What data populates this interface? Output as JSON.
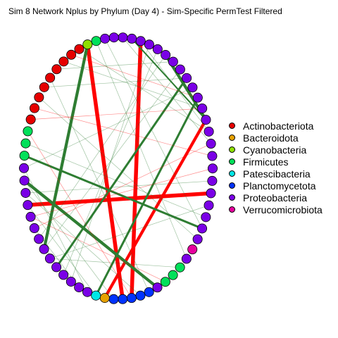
{
  "title": "Sim 8 Network Nplus by Phylum (Day 4) - Sim-Specific PermTest Filtered",
  "colors": {
    "Actinobacteriota": "#e60000",
    "Bacteroidota": "#e6a100",
    "Cyanobacteria": "#8ee000",
    "Firmicutes": "#00e05a",
    "Patescibacteria": "#00e6e6",
    "Planctomycetota": "#0033ff",
    "Proteobacteria": "#7a00e6",
    "Verrucomicrobiota": "#e6009e",
    "positive_edge": "#2e7d32",
    "negative_edge": "#ff0000"
  },
  "legend": [
    {
      "label": "Actinobacteriota",
      "color": "#e60000"
    },
    {
      "label": "Bacteroidota",
      "color": "#e6a100"
    },
    {
      "label": "Cyanobacteria",
      "color": "#8ee000"
    },
    {
      "label": "Firmicutes",
      "color": "#00e05a"
    },
    {
      "label": "Patescibacteria",
      "color": "#00e6e6"
    },
    {
      "label": "Planctomycetota",
      "color": "#0033ff"
    },
    {
      "label": "Proteobacteria",
      "color": "#7a00e6"
    },
    {
      "label": "Verrucomicrobiota",
      "color": "#e6009e"
    }
  ],
  "node_sequence": [
    "Proteobacteria",
    "Proteobacteria",
    "Proteobacteria",
    "Proteobacteria",
    "Proteobacteria",
    "Proteobacteria",
    "Proteobacteria",
    "Proteobacteria",
    "Proteobacteria",
    "Proteobacteria",
    "Proteobacteria",
    "Proteobacteria",
    "Proteobacteria",
    "Proteobacteria",
    "Proteobacteria",
    "Proteobacteria",
    "Proteobacteria",
    "Proteobacteria",
    "Proteobacteria",
    "Proteobacteria",
    "Proteobacteria",
    "Proteobacteria",
    "Proteobacteria",
    "Verrucomicrobiota",
    "Proteobacteria",
    "Firmicutes",
    "Firmicutes",
    "Firmicutes",
    "Proteobacteria",
    "Planctomycetota",
    "Planctomycetota",
    "Planctomycetota",
    "Planctomycetota",
    "Planctomycetota",
    "Bacteroidota",
    "Patescibacteria",
    "Proteobacteria",
    "Proteobacteria",
    "Proteobacteria",
    "Proteobacteria",
    "Proteobacteria",
    "Proteobacteria",
    "Proteobacteria",
    "Proteobacteria",
    "Proteobacteria",
    "Proteobacteria",
    "Proteobacteria",
    "Proteobacteria",
    "Proteobacteria",
    "Proteobacteria",
    "Firmicutes",
    "Firmicutes",
    "Firmicutes",
    "Actinobacteriota",
    "Actinobacteriota",
    "Actinobacteriota",
    "Actinobacteriota",
    "Actinobacteriota",
    "Actinobacteriota",
    "Actinobacteriota",
    "Actinobacteriota",
    "Actinobacteriota",
    "Cyanobacteria",
    "Firmicutes",
    "Proteobacteria",
    "Proteobacteria"
  ],
  "edges": [
    {
      "from": 62,
      "to": 32,
      "sign": "negative",
      "weight": 5
    },
    {
      "from": 46,
      "to": 18,
      "sign": "negative",
      "weight": 5
    },
    {
      "from": 2,
      "to": 31,
      "sign": "negative",
      "weight": 5
    },
    {
      "from": 12,
      "to": 34,
      "sign": "negative",
      "weight": 4
    },
    {
      "from": 5,
      "to": 12,
      "sign": "positive",
      "weight": 4
    },
    {
      "from": 48,
      "to": 28,
      "sign": "positive",
      "weight": 4
    },
    {
      "from": 62,
      "to": 42,
      "sign": "positive",
      "weight": 4
    },
    {
      "from": 8,
      "to": 40,
      "sign": "positive",
      "weight": 3
    },
    {
      "from": 10,
      "to": 35,
      "sign": "positive",
      "weight": 3
    },
    {
      "from": 50,
      "to": 21,
      "sign": "positive",
      "weight": 3
    },
    {
      "from": 1,
      "to": 12,
      "sign": "positive",
      "weight": 2
    },
    {
      "from": 52,
      "to": 31,
      "sign": "negative",
      "weight": 1
    },
    {
      "from": 45,
      "to": 27,
      "sign": "negative",
      "weight": 1
    },
    {
      "from": 54,
      "to": 15,
      "sign": "negative",
      "weight": 1
    },
    {
      "from": 51,
      "to": 20,
      "sign": "positive",
      "weight": 1
    },
    {
      "from": 59,
      "to": 11,
      "sign": "positive",
      "weight": 1
    },
    {
      "from": 49,
      "to": 9,
      "sign": "positive",
      "weight": 1
    },
    {
      "from": 47,
      "to": 17,
      "sign": "positive",
      "weight": 1
    },
    {
      "from": 60,
      "to": 10,
      "sign": "negative",
      "weight": 1
    },
    {
      "from": 42,
      "to": 7,
      "sign": "positive",
      "weight": 1
    },
    {
      "from": 57,
      "to": 29,
      "sign": "positive",
      "weight": 1
    },
    {
      "from": 44,
      "to": 14,
      "sign": "negative",
      "weight": 1
    },
    {
      "from": 53,
      "to": 11,
      "sign": "negative",
      "weight": 1
    },
    {
      "from": 63,
      "to": 24,
      "sign": "positive",
      "weight": 1
    },
    {
      "from": 58,
      "to": 6,
      "sign": "positive",
      "weight": 1
    },
    {
      "from": 41,
      "to": 19,
      "sign": "positive",
      "weight": 1
    },
    {
      "from": 38,
      "to": 3,
      "sign": "positive",
      "weight": 1
    },
    {
      "from": 45,
      "to": 16,
      "sign": "negative",
      "weight": 1
    },
    {
      "from": 41,
      "to": 25,
      "sign": "positive",
      "weight": 1
    },
    {
      "from": 39,
      "to": 4,
      "sign": "positive",
      "weight": 1
    },
    {
      "from": 55,
      "to": 22,
      "sign": "positive",
      "weight": 1
    },
    {
      "from": 43,
      "to": 5,
      "sign": "positive",
      "weight": 1
    },
    {
      "from": 49,
      "to": 36,
      "sign": "positive",
      "weight": 1
    },
    {
      "from": 48,
      "to": 33,
      "sign": "positive",
      "weight": 1
    },
    {
      "from": 44,
      "to": 37,
      "sign": "positive",
      "weight": 1
    },
    {
      "from": 43,
      "to": 39,
      "sign": "positive",
      "weight": 1
    },
    {
      "from": 46,
      "to": 35,
      "sign": "positive",
      "weight": 1
    },
    {
      "from": 47,
      "to": 30,
      "sign": "positive",
      "weight": 1
    },
    {
      "from": 40,
      "to": 36,
      "sign": "positive",
      "weight": 1
    },
    {
      "from": 56,
      "to": 8,
      "sign": "positive",
      "weight": 1
    },
    {
      "from": 61,
      "to": 13,
      "sign": "positive",
      "weight": 1
    },
    {
      "from": 0,
      "to": 14,
      "sign": "positive",
      "weight": 1
    },
    {
      "from": 64,
      "to": 21,
      "sign": "positive",
      "weight": 1
    },
    {
      "from": 2,
      "to": 13,
      "sign": "positive",
      "weight": 1
    }
  ]
}
